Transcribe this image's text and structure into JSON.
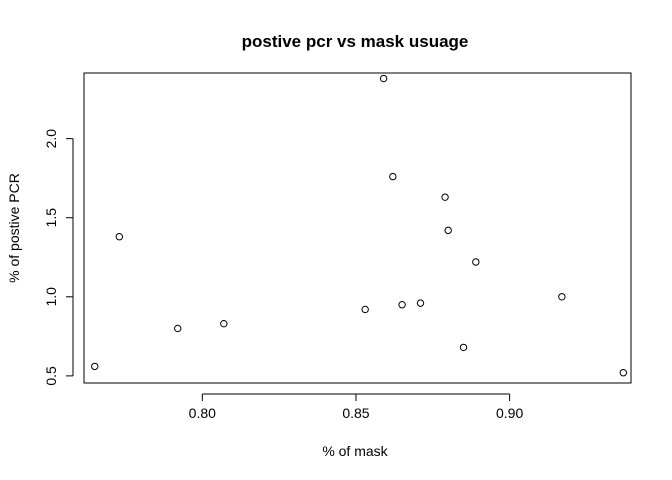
{
  "chart_data": {
    "type": "scatter",
    "title": "postive pcr vs mask usuage",
    "xlabel": "% of mask",
    "ylabel": "% of postive PCR",
    "xlim": [
      0.7615,
      0.9395
    ],
    "ylim": [
      0.455,
      2.415
    ],
    "xticks": [
      0.8,
      0.85,
      0.9
    ],
    "xtick_labels": [
      "0.80",
      "0.85",
      "0.90"
    ],
    "yticks": [
      0.5,
      1.0,
      1.5,
      2.0
    ],
    "ytick_labels": [
      "0.5",
      "1.0",
      "1.5",
      "2.0"
    ],
    "grid": false,
    "points": [
      {
        "x": 0.765,
        "y": 0.56
      },
      {
        "x": 0.773,
        "y": 1.38
      },
      {
        "x": 0.792,
        "y": 0.8
      },
      {
        "x": 0.807,
        "y": 0.83
      },
      {
        "x": 0.853,
        "y": 0.92
      },
      {
        "x": 0.859,
        "y": 2.38
      },
      {
        "x": 0.862,
        "y": 1.76
      },
      {
        "x": 0.865,
        "y": 0.95
      },
      {
        "x": 0.871,
        "y": 0.96
      },
      {
        "x": 0.879,
        "y": 1.63
      },
      {
        "x": 0.88,
        "y": 1.42
      },
      {
        "x": 0.885,
        "y": 0.68
      },
      {
        "x": 0.889,
        "y": 1.22
      },
      {
        "x": 0.917,
        "y": 1.0
      },
      {
        "x": 0.937,
        "y": 0.52
      }
    ]
  }
}
